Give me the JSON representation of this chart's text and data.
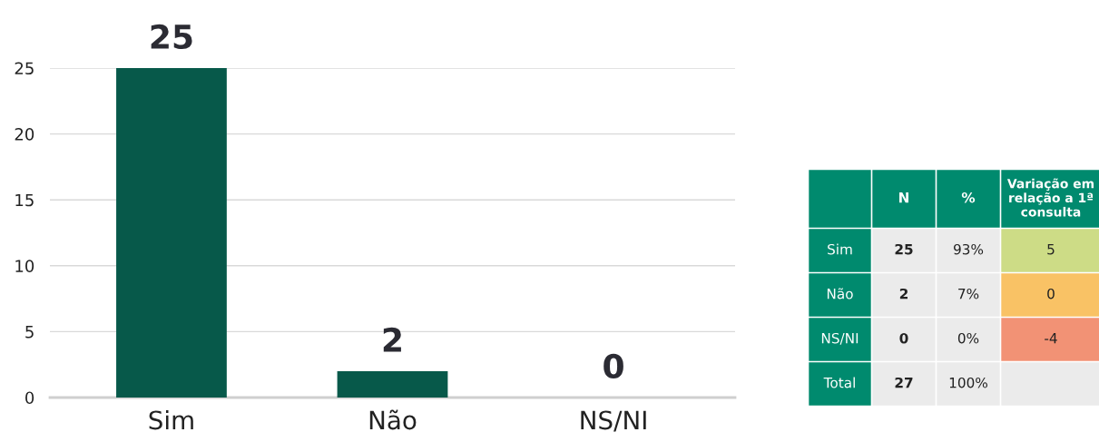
{
  "chart_data": [
    {
      "type": "bar",
      "categories": [
        "Sim",
        "Não",
        "NS/NI"
      ],
      "values": [
        25,
        2,
        0
      ],
      "color": "#07594a",
      "ylim": [
        0,
        25
      ],
      "yticks": [
        0,
        5,
        10,
        15,
        20,
        25
      ],
      "grid": "y",
      "data_labels": true
    },
    {
      "type": "other",
      "categories": [
        null,
        "N",
        "%",
        "Variação em relação a 1ª consulta"
      ],
      "y_categories": [
        "Sim",
        "Não",
        "NS/NI",
        "Total"
      ],
      "cell_labels": [
        [
          "25",
          "93%",
          "5"
        ],
        [
          "2",
          "7%",
          "0"
        ],
        [
          "0",
          "0%",
          "-4"
        ],
        [
          "27",
          "100%",
          null
        ]
      ],
      "colors": [
        [
          "#ebebeb",
          "#ebebeb",
          "#cddc86"
        ],
        [
          "#ebebeb",
          "#ebebeb",
          "#f9c265"
        ],
        [
          "#ebebeb",
          "#ebebeb",
          "#f29275"
        ],
        [
          "#ebebeb",
          "#ebebeb",
          "#ebebeb"
        ]
      ],
      "color": "#008a6e"
    }
  ]
}
